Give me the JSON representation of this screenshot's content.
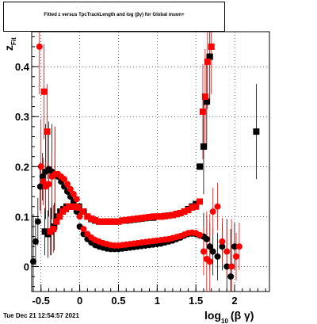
{
  "chart_data": {
    "type": "scatter",
    "title": "Fitted  z   versus TpcTrackLength and log  (βγ) for Global muon+",
    "title_sub_fit": "Fit",
    "title_sub_10": "10",
    "ylabel": "z",
    "ylabel_sub": "Fit",
    "xlabel": "log",
    "xlabel_sub": "10",
    "xlabel_tail": "(β γ)",
    "xlim": [
      -0.62,
      2.45
    ],
    "ylim": [
      -0.05,
      0.47
    ],
    "xticks": [
      -0.5,
      0,
      0.5,
      1,
      1.5,
      2
    ],
    "xtick_labels": [
      "-0.5",
      "0",
      "0.5",
      "1",
      "1.5",
      "2"
    ],
    "yticks": [
      0,
      0.1,
      0.2,
      0.3,
      0.4
    ],
    "ytick_labels": [
      "0",
      "0.1",
      "0.2",
      "0.3",
      "0.4"
    ],
    "grid": true,
    "series": [
      {
        "color": "#000000",
        "marker": "square",
        "x": [
          -0.45,
          -0.41,
          -0.37,
          -0.33,
          -0.29,
          -0.25,
          -0.21,
          -0.17,
          -0.13,
          -0.09,
          -0.05,
          -0.01,
          0.05,
          0.1,
          0.15,
          0.2,
          0.25,
          0.3,
          0.35,
          0.4,
          0.45,
          0.5,
          0.55,
          0.6,
          0.65,
          0.7,
          0.75,
          0.8,
          0.85,
          0.9,
          0.95,
          1.0,
          1.05,
          1.1,
          1.15,
          1.2,
          1.25,
          1.3,
          1.35,
          1.4,
          1.45,
          1.5,
          1.55,
          1.6,
          1.64,
          1.68,
          2.28
        ],
        "y": [
          0.07,
          0.065,
          0.07,
          0.08,
          0.1,
          0.11,
          0.115,
          0.12,
          0.12,
          0.12,
          0.12,
          0.12,
          0.11,
          0.1,
          0.095,
          0.092,
          0.09,
          0.09,
          0.09,
          0.09,
          0.09,
          0.09,
          0.092,
          0.092,
          0.093,
          0.094,
          0.095,
          0.096,
          0.097,
          0.098,
          0.098,
          0.1,
          0.1,
          0.101,
          0.102,
          0.103,
          0.105,
          0.107,
          0.11,
          0.115,
          0.12,
          0.125,
          0.2,
          0.24,
          0.33,
          0.42,
          0.27
        ]
      },
      {
        "color": "#000000",
        "marker": "circle",
        "x": [
          -0.6,
          -0.57,
          -0.54,
          -0.51,
          -0.48,
          -0.44,
          -0.4,
          -0.36,
          -0.32,
          -0.28,
          -0.24,
          -0.2,
          -0.16,
          -0.12,
          -0.08,
          -0.04,
          0.0,
          0.05,
          0.1,
          0.15,
          0.2,
          0.25,
          0.3,
          0.35,
          0.4,
          0.45,
          0.5,
          0.55,
          0.6,
          0.65,
          0.7,
          0.75,
          0.8,
          0.85,
          0.9,
          0.95,
          1.0,
          1.05,
          1.1,
          1.15,
          1.2,
          1.25,
          1.3,
          1.35,
          1.4,
          1.45,
          1.5,
          1.55,
          1.6,
          1.64,
          1.68,
          1.72,
          1.78,
          1.84,
          1.9,
          1.95,
          2.0
        ],
        "y": [
          0.01,
          0.05,
          0.09,
          0.16,
          0.18,
          0.19,
          0.195,
          0.19,
          0.185,
          0.18,
          0.17,
          0.16,
          0.15,
          0.14,
          0.13,
          0.11,
          0.08,
          0.065,
          0.055,
          0.048,
          0.043,
          0.04,
          0.038,
          0.036,
          0.035,
          0.035,
          0.035,
          0.036,
          0.037,
          0.038,
          0.039,
          0.04,
          0.041,
          0.042,
          0.043,
          0.044,
          0.045,
          0.046,
          0.048,
          0.05,
          0.052,
          0.055,
          0.058,
          0.062,
          0.065,
          0.066,
          0.065,
          0.062,
          0.06,
          0.055,
          0.04,
          0.03,
          0.02,
          0.04,
          0.0,
          -0.02,
          0.04
        ]
      },
      {
        "color": "#ff0000",
        "marker": "square",
        "x": [
          -0.46,
          -0.42,
          -0.38,
          -0.34,
          -0.3,
          -0.26,
          -0.22,
          -0.18,
          -0.14,
          -0.1,
          -0.06,
          -0.02,
          0.04,
          0.1,
          0.15,
          0.2,
          0.25,
          0.3,
          0.35,
          0.4,
          0.45,
          0.5,
          0.55,
          0.6,
          0.65,
          0.7,
          0.75,
          0.8,
          0.85,
          0.9,
          0.95,
          1.0,
          1.05,
          1.1,
          1.15,
          1.2,
          1.25,
          1.3,
          1.35,
          1.4,
          1.45,
          1.5,
          1.55,
          1.59,
          1.62,
          1.65,
          1.7
        ],
        "y": [
          0.35,
          0.27,
          0.07,
          0.075,
          0.09,
          0.1,
          0.11,
          0.115,
          0.12,
          0.12,
          0.12,
          0.118,
          0.11,
          0.1,
          0.096,
          0.093,
          0.09,
          0.09,
          0.09,
          0.09,
          0.09,
          0.09,
          0.092,
          0.093,
          0.094,
          0.095,
          0.096,
          0.097,
          0.098,
          0.099,
          0.1,
          0.1,
          0.1,
          0.101,
          0.102,
          0.103,
          0.105,
          0.107,
          0.11,
          0.113,
          0.118,
          0.12,
          0.13,
          0.31,
          0.34,
          0.41,
          0.44
        ]
      },
      {
        "color": "#ff0000",
        "marker": "circle",
        "x": [
          -0.52,
          -0.5,
          -0.47,
          -0.44,
          -0.4,
          -0.36,
          -0.32,
          -0.28,
          -0.24,
          -0.2,
          -0.16,
          -0.12,
          -0.08,
          -0.04,
          0.0,
          0.05,
          0.1,
          0.15,
          0.2,
          0.25,
          0.3,
          0.35,
          0.4,
          0.45,
          0.5,
          0.55,
          0.6,
          0.65,
          0.7,
          0.75,
          0.8,
          0.85,
          0.9,
          0.95,
          1.0,
          1.05,
          1.1,
          1.15,
          1.2,
          1.25,
          1.3,
          1.35,
          1.4,
          1.45,
          1.5,
          1.55,
          1.6,
          1.64,
          1.68,
          1.72,
          1.78,
          1.84,
          1.9,
          1.96,
          2.02,
          2.06
        ],
        "y": [
          0.44,
          0.2,
          0.17,
          0.16,
          0.165,
          0.18,
          0.185,
          0.185,
          0.18,
          0.175,
          0.165,
          0.155,
          0.145,
          0.135,
          0.1,
          0.075,
          0.065,
          0.058,
          0.053,
          0.05,
          0.047,
          0.045,
          0.043,
          0.042,
          0.042,
          0.043,
          0.044,
          0.045,
          0.046,
          0.047,
          0.048,
          0.049,
          0.05,
          0.051,
          0.052,
          0.053,
          0.054,
          0.055,
          0.057,
          0.059,
          0.061,
          0.064,
          0.067,
          0.068,
          0.067,
          0.063,
          0.03,
          0.015,
          0.01,
          0.11,
          0.12,
          0.05,
          0.03,
          0.0,
          0.02,
          0.04
        ]
      }
    ]
  },
  "timestamp": "Tue Dec 21 12:54:57 2021"
}
